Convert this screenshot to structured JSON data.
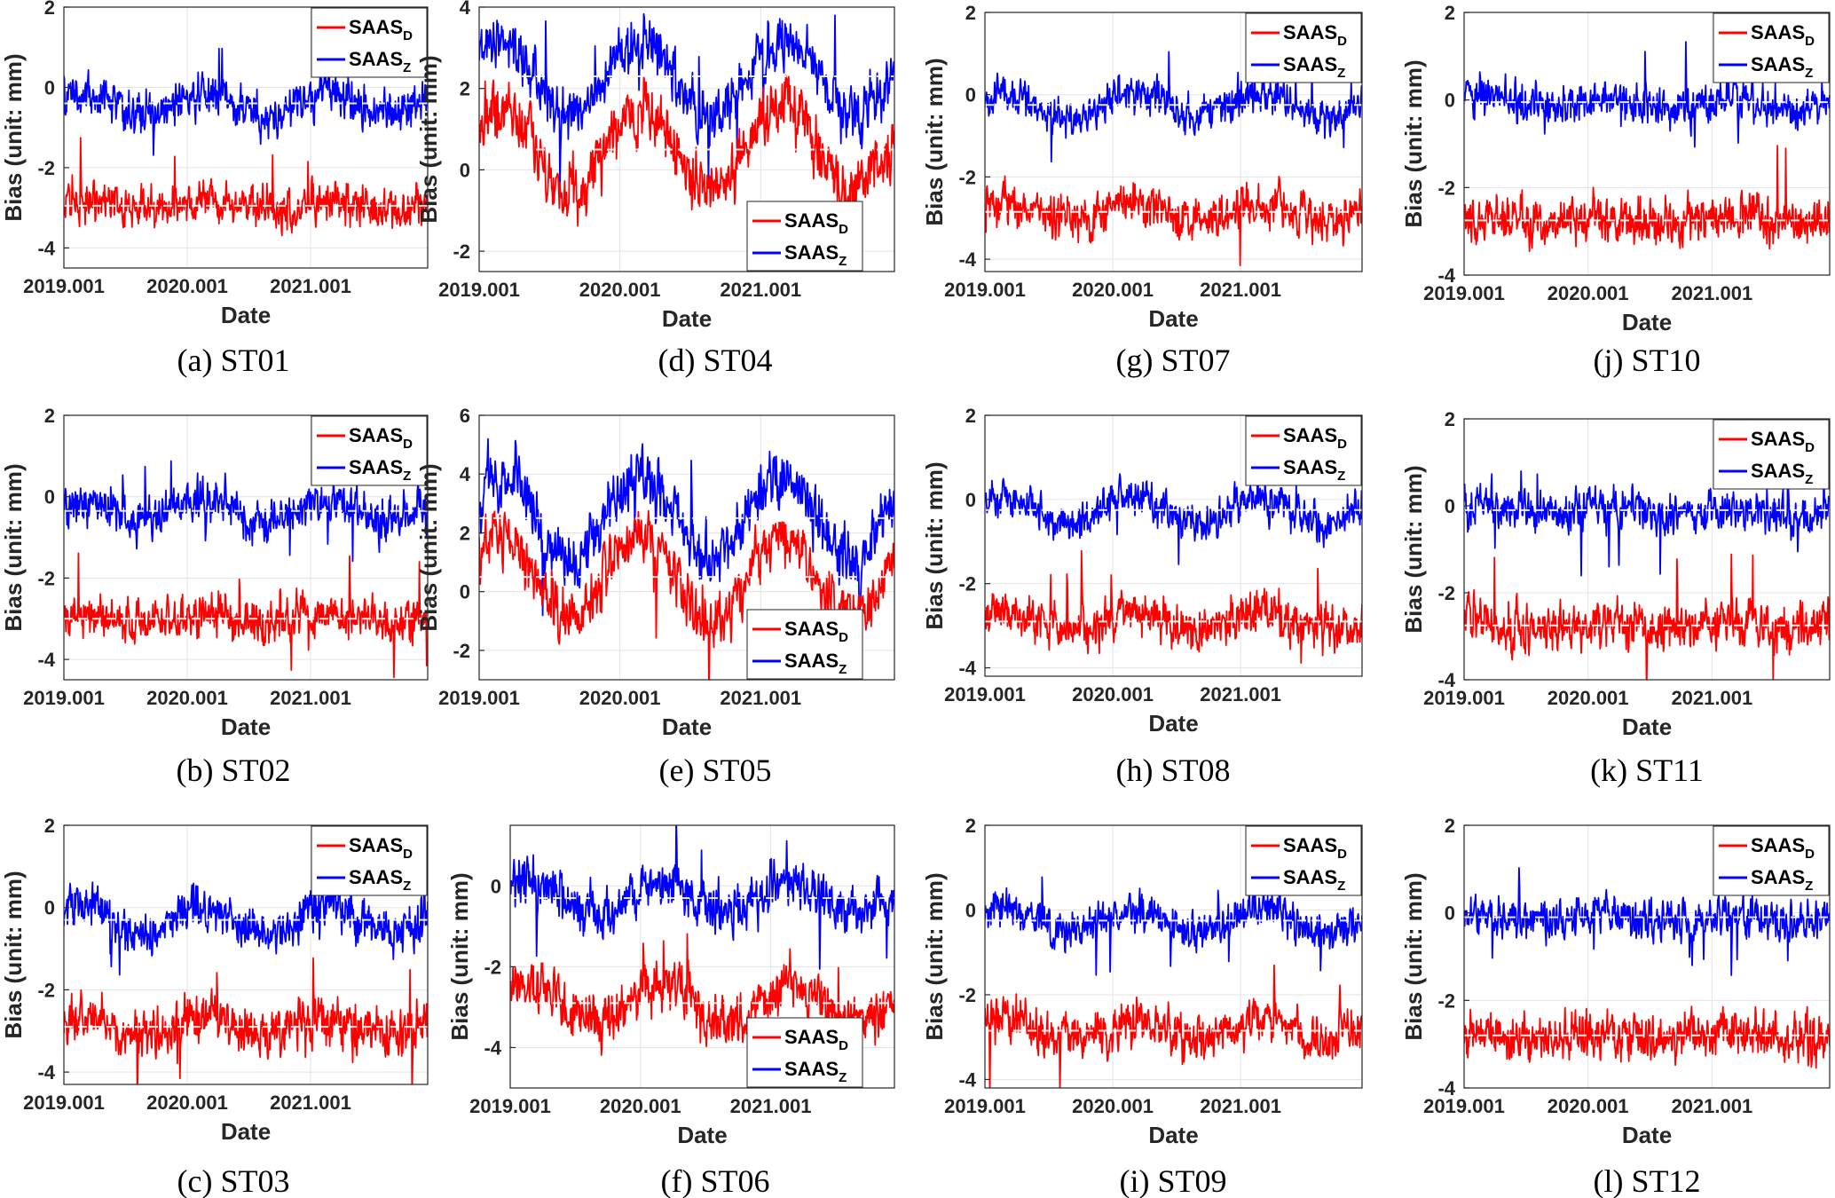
{
  "colors": {
    "SAAS_D": "#ff0000",
    "SAAS_Z": "#0000ff"
  },
  "chart_data": [
    {
      "type": "line",
      "panel": "(a) ST01",
      "caption": "(a) ST01",
      "xlabel": "Date",
      "ylabel": "Bias (unit: mm)",
      "ylim": [
        -4.5,
        2
      ],
      "yticks": [
        -4,
        -2,
        0,
        2
      ],
      "xticks": [
        "2019.001",
        "2020.001",
        "2021.001"
      ],
      "legend_position": "top-right",
      "series": [
        {
          "name": "SAAS",
          "sub": "D",
          "color": "#ff0000",
          "mean": -2.95,
          "amplitude": 0.1,
          "noise": 0.35
        },
        {
          "name": "SAAS",
          "sub": "Z",
          "color": "#0000ff",
          "mean": -0.4,
          "amplitude": 0.25,
          "noise": 0.35
        }
      ]
    },
    {
      "type": "line",
      "panel": "(b) ST02",
      "caption": "(b) ST02",
      "xlabel": "Date",
      "ylabel": "Bias (unit: mm)",
      "ylim": [
        -4.5,
        2
      ],
      "yticks": [
        -4,
        -2,
        0,
        2
      ],
      "xticks": [
        "2019.001",
        "2020.001",
        "2021.001"
      ],
      "legend_position": "top-right",
      "series": [
        {
          "name": "SAAS",
          "sub": "D",
          "color": "#ff0000",
          "mean": -3.0,
          "amplitude": 0.1,
          "noise": 0.35
        },
        {
          "name": "SAAS",
          "sub": "Z",
          "color": "#0000ff",
          "mean": -0.35,
          "amplitude": 0.25,
          "noise": 0.35
        }
      ]
    },
    {
      "type": "line",
      "panel": "(c) ST03",
      "caption": "(c) ST03",
      "xlabel": "Date",
      "ylabel": "Bias (unit: mm)",
      "ylim": [
        -4.3,
        2
      ],
      "yticks": [
        -4,
        -2,
        0,
        2
      ],
      "xticks": [
        "2019.001",
        "2020.001",
        "2021.001"
      ],
      "legend_position": "top-right",
      "series": [
        {
          "name": "SAAS",
          "sub": "D",
          "color": "#ff0000",
          "mean": -2.9,
          "amplitude": 0.2,
          "noise": 0.4
        },
        {
          "name": "SAAS",
          "sub": "Z",
          "color": "#0000ff",
          "mean": -0.3,
          "amplitude": 0.4,
          "noise": 0.35
        }
      ]
    },
    {
      "type": "line",
      "panel": "(d) ST04",
      "caption": "(d) ST04",
      "xlabel": "Date",
      "ylabel": "Bias (unit: mm)",
      "ylim": [
        -2.5,
        4
      ],
      "yticks": [
        -2,
        0,
        2,
        4
      ],
      "xticks": [
        "2019.001",
        "2020.001",
        "2021.001"
      ],
      "legend_position": "bottom-right",
      "series": [
        {
          "name": "SAAS",
          "sub": "D",
          "color": "#ff0000",
          "mean": 0.5,
          "amplitude": 1.0,
          "noise": 0.5
        },
        {
          "name": "SAAS",
          "sub": "Z",
          "color": "#0000ff",
          "mean": 2.3,
          "amplitude": 0.9,
          "noise": 0.45
        }
      ]
    },
    {
      "type": "line",
      "panel": "(e) ST05",
      "caption": "(e) ST05",
      "xlabel": "Date",
      "ylabel": "Bias (unit: mm)",
      "ylim": [
        -3,
        6
      ],
      "yticks": [
        -2,
        0,
        2,
        4,
        6
      ],
      "xticks": [
        "2019.001",
        "2020.001",
        "2021.001"
      ],
      "legend_position": "bottom-right",
      "series": [
        {
          "name": "SAAS",
          "sub": "D",
          "color": "#ff0000",
          "mean": 0.5,
          "amplitude": 1.4,
          "noise": 0.6
        },
        {
          "name": "SAAS",
          "sub": "Z",
          "color": "#0000ff",
          "mean": 2.5,
          "amplitude": 1.4,
          "noise": 0.7
        }
      ]
    },
    {
      "type": "line",
      "panel": "(f) ST06",
      "caption": "(f) ST06",
      "xlabel": "Date",
      "ylabel": "Bias (unit: mm)",
      "ylim": [
        -5,
        1.5
      ],
      "yticks": [
        -4,
        -2,
        0
      ],
      "xticks": [
        "2019.001",
        "2020.001",
        "2021.001"
      ],
      "legend_position": "bottom-right",
      "series": [
        {
          "name": "SAAS",
          "sub": "D",
          "color": "#ff0000",
          "mean": -2.9,
          "amplitude": 0.5,
          "noise": 0.4
        },
        {
          "name": "SAAS",
          "sub": "Z",
          "color": "#0000ff",
          "mean": -0.3,
          "amplitude": 0.4,
          "noise": 0.4
        }
      ]
    },
    {
      "type": "line",
      "panel": "(g) ST07",
      "caption": "(g) ST07",
      "xlabel": "Date",
      "ylabel": "Bias (unit: mm)",
      "ylim": [
        -4.3,
        2
      ],
      "yticks": [
        -4,
        -2,
        0,
        2
      ],
      "xticks": [
        "2019.001",
        "2020.001",
        "2021.001"
      ],
      "legend_position": "top-right",
      "series": [
        {
          "name": "SAAS",
          "sub": "D",
          "color": "#ff0000",
          "mean": -2.85,
          "amplitude": 0.2,
          "noise": 0.35
        },
        {
          "name": "SAAS",
          "sub": "Z",
          "color": "#0000ff",
          "mean": -0.25,
          "amplitude": 0.3,
          "noise": 0.3
        }
      ]
    },
    {
      "type": "line",
      "panel": "(h) ST08",
      "caption": "(h) ST08",
      "xlabel": "Date",
      "ylabel": "Bias (unit: mm)",
      "ylim": [
        -4.2,
        2
      ],
      "yticks": [
        -4,
        -2,
        0,
        2
      ],
      "xticks": [
        "2019.001",
        "2020.001",
        "2021.001"
      ],
      "legend_position": "top-right",
      "series": [
        {
          "name": "SAAS",
          "sub": "D",
          "color": "#ff0000",
          "mean": -2.9,
          "amplitude": 0.2,
          "noise": 0.35
        },
        {
          "name": "SAAS",
          "sub": "Z",
          "color": "#0000ff",
          "mean": -0.25,
          "amplitude": 0.3,
          "noise": 0.3
        }
      ]
    },
    {
      "type": "line",
      "panel": "(i) ST09",
      "caption": "(i) ST09",
      "xlabel": "Date",
      "ylabel": "Bias (unit: mm)",
      "ylim": [
        -4.2,
        2
      ],
      "yticks": [
        -4,
        -2,
        0,
        2
      ],
      "xticks": [
        "2019.001",
        "2020.001",
        "2021.001"
      ],
      "legend_position": "top-right",
      "series": [
        {
          "name": "SAAS",
          "sub": "D",
          "color": "#ff0000",
          "mean": -2.85,
          "amplitude": 0.2,
          "noise": 0.35
        },
        {
          "name": "SAAS",
          "sub": "Z",
          "color": "#0000ff",
          "mean": -0.25,
          "amplitude": 0.3,
          "noise": 0.3
        }
      ]
    },
    {
      "type": "line",
      "panel": "(j) ST10",
      "caption": "(j) ST10",
      "xlabel": "Date",
      "ylabel": "Bias (unit: mm)",
      "ylim": [
        -4,
        2
      ],
      "yticks": [
        -4,
        -2,
        0,
        2
      ],
      "xticks": [
        "2019.001",
        "2020.001",
        "2021.001"
      ],
      "legend_position": "top-right",
      "series": [
        {
          "name": "SAAS",
          "sub": "D",
          "color": "#ff0000",
          "mean": -2.75,
          "amplitude": 0.1,
          "noise": 0.35
        },
        {
          "name": "SAAS",
          "sub": "Z",
          "color": "#0000ff",
          "mean": -0.05,
          "amplitude": 0.1,
          "noise": 0.3
        }
      ]
    },
    {
      "type": "line",
      "panel": "(k) ST11",
      "caption": "(k) ST11",
      "xlabel": "Date",
      "ylabel": "Bias (unit: mm)",
      "ylim": [
        -4,
        2
      ],
      "yticks": [
        -4,
        -2,
        0,
        2
      ],
      "xticks": [
        "2019.001",
        "2020.001",
        "2021.001"
      ],
      "legend_position": "top-right",
      "series": [
        {
          "name": "SAAS",
          "sub": "D",
          "color": "#ff0000",
          "mean": -2.75,
          "amplitude": 0.1,
          "noise": 0.35
        },
        {
          "name": "SAAS",
          "sub": "Z",
          "color": "#0000ff",
          "mean": -0.1,
          "amplitude": 0.1,
          "noise": 0.3
        }
      ]
    },
    {
      "type": "line",
      "panel": "(l) ST12",
      "caption": "(l) ST12",
      "xlabel": "Date",
      "ylabel": "Bias (unit: mm)",
      "ylim": [
        -4,
        2
      ],
      "yticks": [
        -4,
        -2,
        0,
        2
      ],
      "xticks": [
        "2019.001",
        "2020.001",
        "2021.001"
      ],
      "legend_position": "top-right",
      "series": [
        {
          "name": "SAAS",
          "sub": "D",
          "color": "#ff0000",
          "mean": -2.8,
          "amplitude": 0.1,
          "noise": 0.35
        },
        {
          "name": "SAAS",
          "sub": "Z",
          "color": "#0000ff",
          "mean": -0.1,
          "amplitude": 0.1,
          "noise": 0.3
        }
      ]
    }
  ]
}
